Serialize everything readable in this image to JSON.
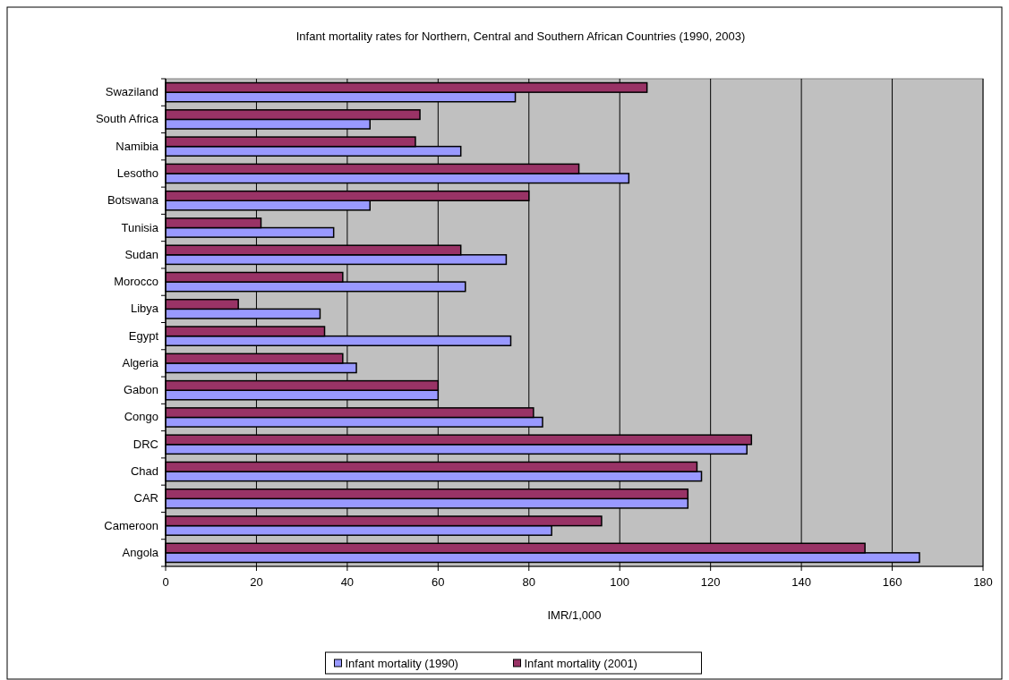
{
  "chart_data": {
    "type": "bar",
    "orientation": "horizontal",
    "title": "Infant mortality rates for Northern, Central and Southern African Countries (1990, 2003)",
    "xlabel": "IMR/1,000",
    "categories": [
      "Swaziland",
      "South Africa",
      "Namibia",
      "Lesotho",
      "Botswana",
      "Tunisia",
      "Sudan",
      "Morocco",
      "Libya",
      "Egypt",
      "Algeria",
      "Gabon",
      "Congo",
      "DRC",
      "Chad",
      "CAR",
      "Cameroon",
      "Angola"
    ],
    "series": [
      {
        "name": "Infant mortality (1990)",
        "color": "#9999ff",
        "values": [
          77,
          45,
          65,
          102,
          45,
          37,
          75,
          66,
          34,
          76,
          42,
          60,
          83,
          128,
          118,
          115,
          85,
          166
        ]
      },
      {
        "name": "Infant mortality (2001)",
        "color": "#993366",
        "values": [
          106,
          56,
          55,
          91,
          80,
          21,
          65,
          39,
          16,
          35,
          39,
          60,
          81,
          129,
          117,
          115,
          96,
          154
        ]
      }
    ],
    "xlim": [
      0,
      180
    ],
    "xticks": [
      0,
      20,
      40,
      60,
      80,
      100,
      120,
      140,
      160,
      180
    ],
    "grid": "x",
    "legend": "bottom"
  }
}
